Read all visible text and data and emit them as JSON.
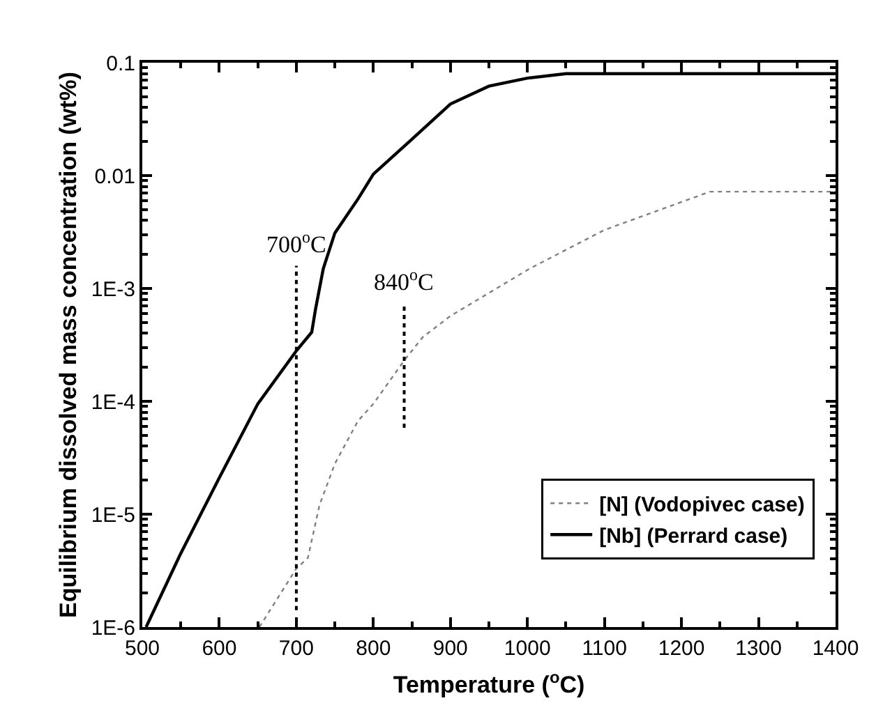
{
  "chart_data": {
    "type": "line",
    "xlabel": "Temperature ($^{o}$C)",
    "ylabel": "Equilibrium dissolved mass concentration (wt%)",
    "log": "y",
    "xlim": [
      500,
      1400
    ],
    "xticks": [
      500,
      600,
      700,
      800,
      900,
      1000,
      1100,
      1200,
      1300,
      1400
    ],
    "ylim": [
      1e-06,
      0.1
    ],
    "yticks": [
      {
        "value": 1e-06,
        "label": "1E-6"
      },
      {
        "value": 1e-05,
        "label": "1E-5"
      },
      {
        "value": 0.0001,
        "label": "1E-4"
      },
      {
        "value": 0.001,
        "label": "1E-3"
      },
      {
        "value": 0.01,
        "label": "0.01"
      },
      {
        "value": 0.1,
        "label": "0.1"
      }
    ],
    "legend": "bottom right",
    "series": [
      {
        "name": "[N] (Vodopivec case)",
        "color": "#808080",
        "line_style": "dotted",
        "x": [
          652,
          700,
          715,
          730,
          750,
          780,
          800,
          840,
          864,
          900,
          1003,
          1100,
          1237,
          1400
        ],
        "values": [
          1e-06,
          3.3e-06,
          4.1e-06,
          1.2e-05,
          2.8e-05,
          6.7e-05,
          9.5e-05,
          0.00023,
          0.00037,
          0.00057,
          0.0015,
          0.0033,
          0.0072,
          0.0072
        ]
      },
      {
        "name": "[Nb] (Perrard case)",
        "color": "#000000",
        "line_style": "solid",
        "x": [
          505,
          550,
          600,
          650,
          700,
          720,
          725,
          735,
          750,
          780,
          800,
          850,
          900,
          950,
          1000,
          1050,
          1400
        ],
        "values": [
          1e-06,
          4.5e-06,
          2.1e-05,
          9.5e-05,
          0.00028,
          0.00041,
          0.00066,
          0.0015,
          0.0031,
          0.0062,
          0.0103,
          0.021,
          0.043,
          0.062,
          0.073,
          0.08,
          0.08
        ]
      }
    ],
    "ref_lines": [
      {
        "axis": "x",
        "value": 700,
        "label": "700$^{o}$C",
        "line_style": "dotted",
        "color": "#000000"
      },
      {
        "axis": "x",
        "value": 840,
        "label": "840$^{o}$C",
        "line_style": "dotted",
        "color": "#000000"
      }
    ]
  }
}
